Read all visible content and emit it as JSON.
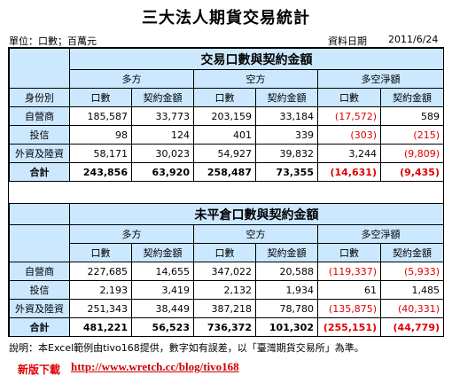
{
  "title": "三大法人期貨交易統計",
  "unit_label": "單位：口數；百萬元",
  "date_label": "資料日期",
  "date_value": "2011/6/24",
  "colors": {
    "header_bg": "#cce8ff",
    "negative": "#e00000",
    "link": "#d00000"
  },
  "table1": {
    "heading": "交易口數與契約金額",
    "group_long": "多方",
    "group_short": "空方",
    "group_net": "多空淨額",
    "row_header": "身份別",
    "col_volume": "口數",
    "col_amount": "契約金額",
    "rows": [
      {
        "label": "自營商",
        "cells": [
          "185,587",
          "33,773",
          "203,159",
          "33,184",
          "(17,572)",
          "589"
        ]
      },
      {
        "label": "投信",
        "cells": [
          "98",
          "124",
          "401",
          "339",
          "(303)",
          "(215)"
        ]
      },
      {
        "label": "外資及陸資",
        "cells": [
          "58,171",
          "30,023",
          "54,927",
          "39,832",
          "3,244",
          "(9,809)"
        ]
      }
    ],
    "total": {
      "label": "合計",
      "cells": [
        "243,856",
        "63,920",
        "258,487",
        "73,355",
        "(14,631)",
        "(9,435)"
      ]
    }
  },
  "table2": {
    "heading": "未平倉口數與契約金額",
    "group_long": "多方",
    "group_short": "空方",
    "group_net": "多空淨額",
    "col_volume": "口數",
    "col_amount": "契約金額",
    "rows": [
      {
        "label": "自營商",
        "cells": [
          "227,685",
          "14,655",
          "347,022",
          "20,588",
          "(119,337)",
          "(5,933)"
        ]
      },
      {
        "label": "投信",
        "cells": [
          "2,193",
          "3,419",
          "2,132",
          "1,934",
          "61",
          "1,485"
        ]
      },
      {
        "label": "外資及陸資",
        "cells": [
          "251,343",
          "38,449",
          "387,218",
          "78,780",
          "(135,875)",
          "(40,331)"
        ]
      }
    ],
    "total": {
      "label": "合計",
      "cells": [
        "481,221",
        "56,523",
        "736,372",
        "101,302",
        "(255,151)",
        "(44,779)"
      ]
    }
  },
  "note": "說明：本Excel範例由tivo168提供，數字如有誤差，以「臺灣期貨交易所」為準。",
  "download_label": "新版下載",
  "download_link": "http://www.wretch.cc/blog/tivo168"
}
